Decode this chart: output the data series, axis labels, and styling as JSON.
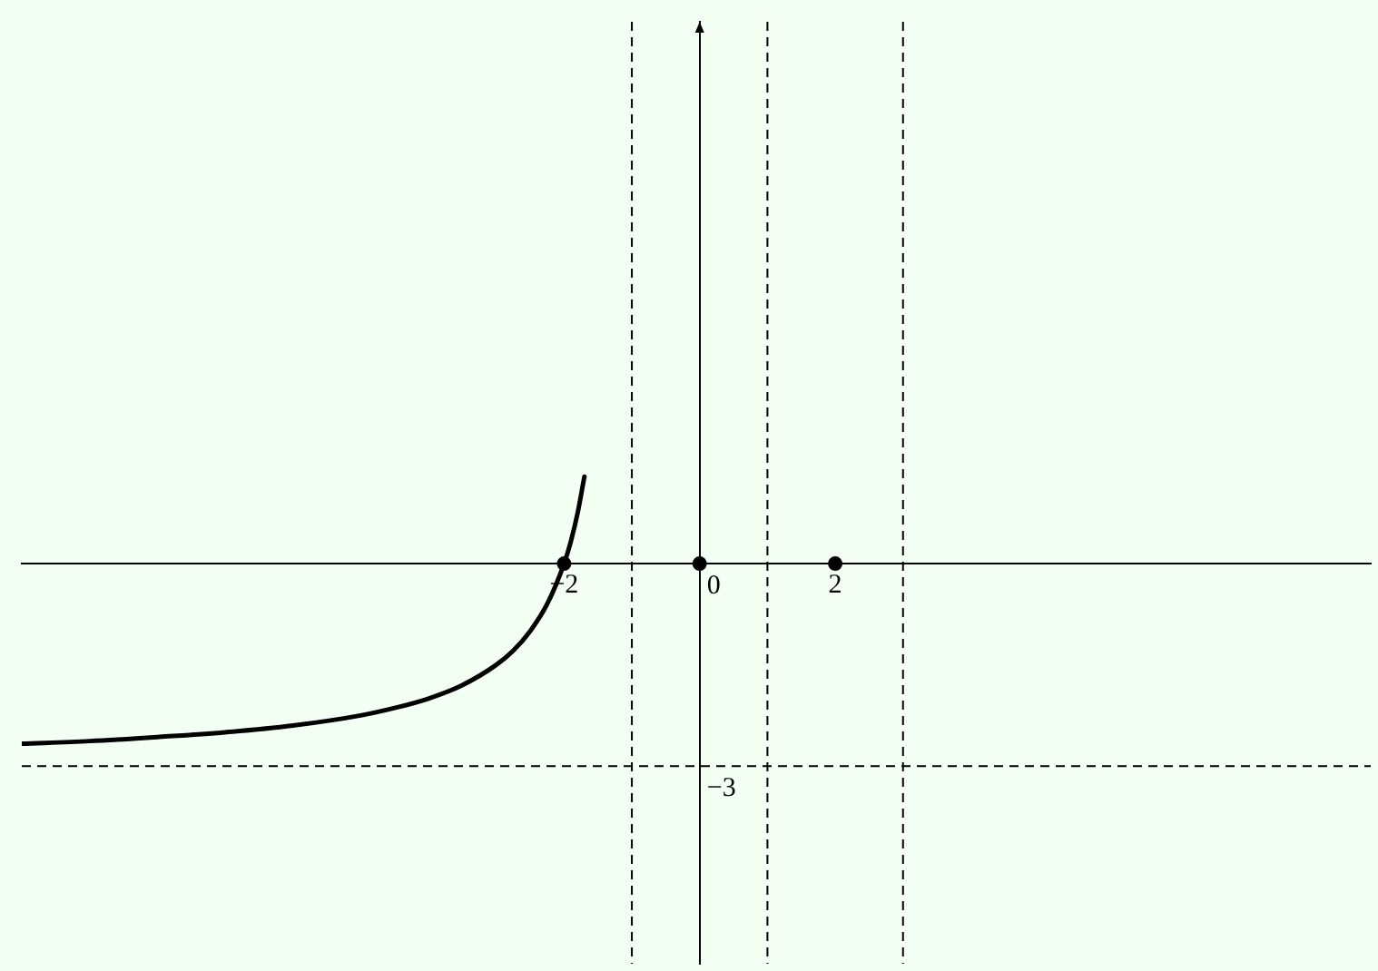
{
  "chart_data": {
    "type": "line",
    "series": [
      {
        "color": "#000000",
        "marker": "none",
        "x": [
          -10,
          -9,
          -8,
          -7,
          -6,
          -5,
          -4.5,
          -4,
          -3.5,
          -3,
          -2.75,
          -2.5,
          -2.25,
          -2,
          -1.9,
          -1.8,
          -1.7
        ],
        "values": [
          -2.67,
          -2.63,
          -2.57,
          -2.5,
          -2.4,
          -2.25,
          -2.14,
          -2,
          -1.8,
          -1.5,
          -1.29,
          -1,
          -0.6,
          0,
          0.33,
          0.75,
          1.29
        ]
      },
      {
        "type": "scatter",
        "color": "#000000",
        "marker": "circle",
        "x": [
          -2,
          0,
          2
        ],
        "values": [
          0,
          0,
          0
        ]
      }
    ],
    "xlim": [
      -10,
      9.9
    ],
    "ylim": [
      -5.93,
      8.03
    ],
    "xticks": [
      {
        "value": -2,
        "label": "−2"
      },
      2
    ],
    "yticks": [
      0,
      {
        "value": -3,
        "label": "−3"
      }
    ],
    "ref_lines": [
      {
        "axis": "x",
        "value": -1,
        "color": "#000000",
        "line_style": "dashed"
      },
      {
        "axis": "x",
        "value": 1,
        "color": "#000000",
        "line_style": "dashed"
      },
      {
        "axis": "x",
        "value": 3,
        "color": "#000000",
        "line_style": "dashed"
      },
      {
        "axis": "y",
        "value": -3,
        "color": "#000000",
        "line_style": "dashed"
      }
    ],
    "grid": false,
    "legend": false
  }
}
